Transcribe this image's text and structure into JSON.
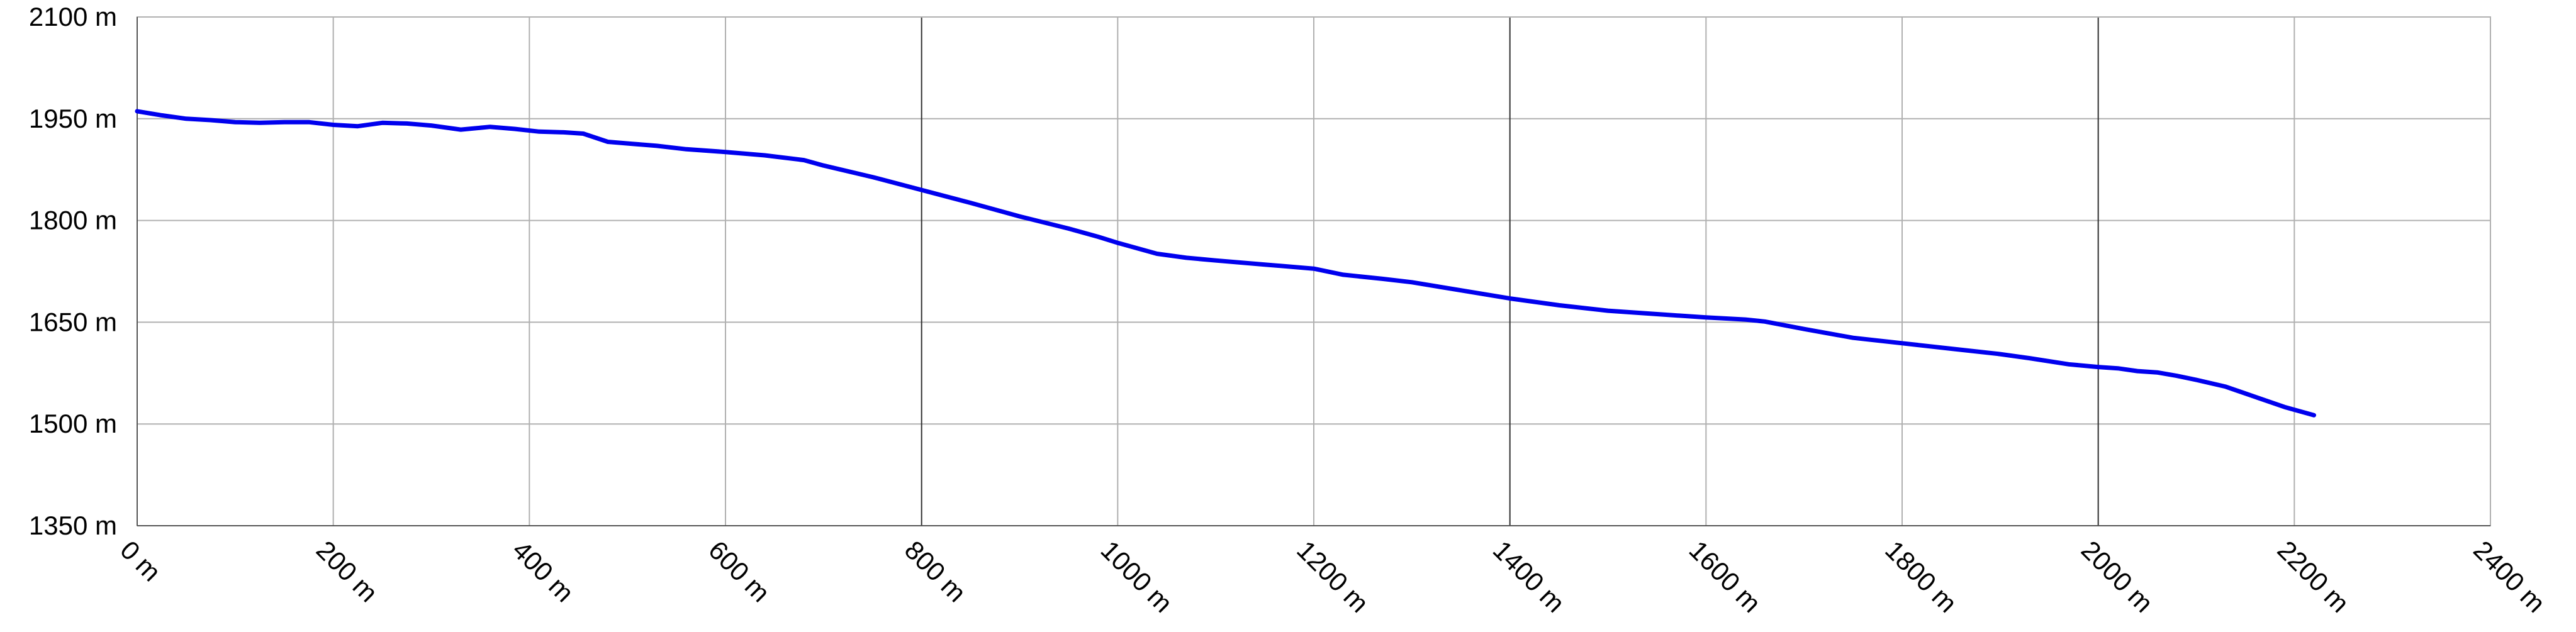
{
  "chart_data": {
    "type": "line",
    "title": "",
    "xlabel": "",
    "ylabel": "",
    "xlim": [
      0,
      2400
    ],
    "ylim": [
      1350,
      2100
    ],
    "grid": true,
    "x_ticks": [
      0,
      200,
      400,
      600,
      800,
      1000,
      1200,
      1400,
      1600,
      1800,
      2000,
      2200,
      2400
    ],
    "x_tick_labels": [
      "0 m",
      "200 m",
      "400 m",
      "600 m",
      "800 m",
      "1000 m",
      "1200 m",
      "1400 m",
      "1600 m",
      "1800 m",
      "2000 m",
      "2200 m",
      "2400 m"
    ],
    "y_ticks": [
      1350,
      1500,
      1650,
      1800,
      1950,
      2100
    ],
    "y_tick_labels": [
      "1350 m",
      "1500 m",
      "1650 m",
      "1800 m",
      "1950 m",
      "2100 m"
    ],
    "colors": {
      "line": "#0000ee",
      "grid": "#b0b0b0",
      "grid_dark": "#303030"
    },
    "emphasized_x_gridlines": [
      800,
      1400,
      2000
    ],
    "series": [
      {
        "color": "#0000ee",
        "x": [
          0,
          25,
          50,
          75,
          100,
          125,
          150,
          175,
          200,
          225,
          250,
          275,
          300,
          330,
          360,
          385,
          410,
          435,
          455,
          480,
          505,
          530,
          560,
          600,
          640,
          680,
          700,
          750,
          800,
          850,
          900,
          950,
          980,
          1000,
          1040,
          1070,
          1100,
          1150,
          1200,
          1230,
          1270,
          1300,
          1350,
          1400,
          1450,
          1500,
          1550,
          1600,
          1640,
          1660,
          1700,
          1750,
          1800,
          1850,
          1900,
          1930,
          1970,
          2000,
          2020,
          2040,
          2060,
          2080,
          2100,
          2130,
          2160,
          2190,
          2220
        ],
        "y": [
          1961,
          1955,
          1950,
          1948,
          1945,
          1944,
          1945,
          1945,
          1941,
          1939,
          1944,
          1943,
          1940,
          1934,
          1938,
          1935,
          1931,
          1930,
          1928,
          1916,
          1913,
          1910,
          1905,
          1901,
          1896,
          1889,
          1881,
          1864,
          1845,
          1826,
          1806,
          1788,
          1776,
          1767,
          1751,
          1745,
          1741,
          1735,
          1729,
          1720,
          1714,
          1709,
          1697,
          1685,
          1675,
          1667,
          1662,
          1657,
          1654,
          1651,
          1640,
          1627,
          1619,
          1611,
          1603,
          1597,
          1588,
          1584,
          1582,
          1578,
          1576,
          1571,
          1565,
          1555,
          1540,
          1525,
          1513
        ]
      }
    ]
  }
}
